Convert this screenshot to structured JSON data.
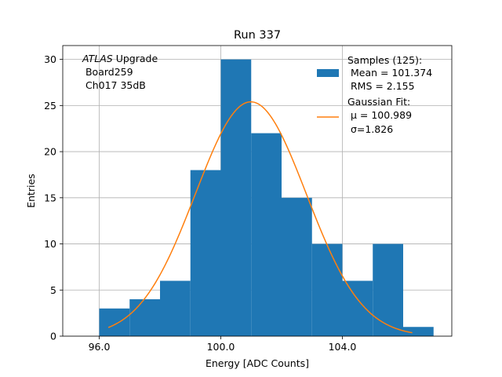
{
  "chart_data": {
    "type": "bar",
    "title": "Run 337",
    "xlabel": "Energy [ADC Counts]",
    "ylabel": "Entries",
    "xlim": [
      94.8,
      107.6
    ],
    "ylim": [
      0,
      31.5
    ],
    "grid": true,
    "x_ticks": [
      96.0,
      100.0,
      104.0
    ],
    "x_tick_labels": [
      "96.0",
      "100.0",
      "104.0"
    ],
    "y_ticks": [
      0,
      5,
      10,
      15,
      20,
      25,
      30
    ],
    "y_tick_labels": [
      "0",
      "5",
      "10",
      "15",
      "20",
      "25",
      "30"
    ],
    "histogram": {
      "bin_edges": [
        96,
        97,
        98,
        99,
        100,
        101,
        102,
        103,
        104,
        105,
        106,
        107
      ],
      "values": [
        3,
        4,
        6,
        18,
        30,
        22,
        15,
        10,
        6,
        10,
        1
      ],
      "color": "#1f77b4"
    },
    "gaussian_fit": {
      "mu": 100.989,
      "sigma": 1.826,
      "amplitude": 25.4,
      "x_range": [
        96.3,
        106.3
      ],
      "color": "#ff7f0e"
    },
    "annotation": {
      "italic": "ATLAS",
      "rest": " Upgrade",
      "line2": " Board259",
      "line3": " Ch017 35dB"
    },
    "legend": {
      "position": "top-right",
      "entries": [
        {
          "kind": "patch",
          "lines": [
            "Samples (125):",
            " Mean = 101.374",
            " RMS = 2.155"
          ]
        },
        {
          "kind": "line",
          "lines": [
            "Gaussian Fit:",
            " μ = 100.989",
            " σ=1.826"
          ]
        }
      ]
    }
  }
}
